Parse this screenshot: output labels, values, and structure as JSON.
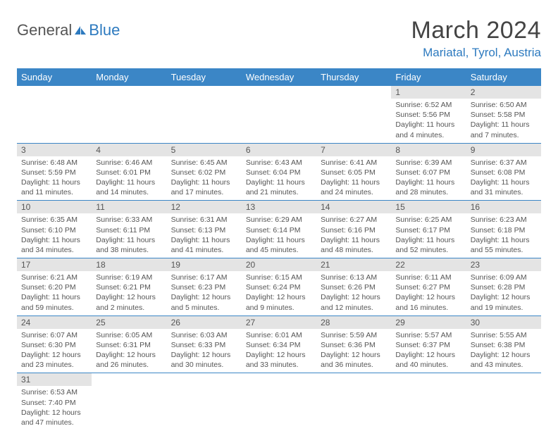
{
  "logo": {
    "part1": "General",
    "part2": "Blue"
  },
  "title": "March 2024",
  "location": "Mariatal, Tyrol, Austria",
  "colors": {
    "header_bg": "#3b86c6",
    "header_text": "#ffffff",
    "daynum_bg": "#e4e4e4",
    "body_text": "#555555",
    "row_border": "#3b86c6",
    "accent": "#2d7abf"
  },
  "weekdays": [
    "Sunday",
    "Monday",
    "Tuesday",
    "Wednesday",
    "Thursday",
    "Friday",
    "Saturday"
  ],
  "weeks": [
    [
      null,
      null,
      null,
      null,
      null,
      {
        "n": "1",
        "sunrise": "Sunrise: 6:52 AM",
        "sunset": "Sunset: 5:56 PM",
        "daylight": "Daylight: 11 hours and 4 minutes."
      },
      {
        "n": "2",
        "sunrise": "Sunrise: 6:50 AM",
        "sunset": "Sunset: 5:58 PM",
        "daylight": "Daylight: 11 hours and 7 minutes."
      }
    ],
    [
      {
        "n": "3",
        "sunrise": "Sunrise: 6:48 AM",
        "sunset": "Sunset: 5:59 PM",
        "daylight": "Daylight: 11 hours and 11 minutes."
      },
      {
        "n": "4",
        "sunrise": "Sunrise: 6:46 AM",
        "sunset": "Sunset: 6:01 PM",
        "daylight": "Daylight: 11 hours and 14 minutes."
      },
      {
        "n": "5",
        "sunrise": "Sunrise: 6:45 AM",
        "sunset": "Sunset: 6:02 PM",
        "daylight": "Daylight: 11 hours and 17 minutes."
      },
      {
        "n": "6",
        "sunrise": "Sunrise: 6:43 AM",
        "sunset": "Sunset: 6:04 PM",
        "daylight": "Daylight: 11 hours and 21 minutes."
      },
      {
        "n": "7",
        "sunrise": "Sunrise: 6:41 AM",
        "sunset": "Sunset: 6:05 PM",
        "daylight": "Daylight: 11 hours and 24 minutes."
      },
      {
        "n": "8",
        "sunrise": "Sunrise: 6:39 AM",
        "sunset": "Sunset: 6:07 PM",
        "daylight": "Daylight: 11 hours and 28 minutes."
      },
      {
        "n": "9",
        "sunrise": "Sunrise: 6:37 AM",
        "sunset": "Sunset: 6:08 PM",
        "daylight": "Daylight: 11 hours and 31 minutes."
      }
    ],
    [
      {
        "n": "10",
        "sunrise": "Sunrise: 6:35 AM",
        "sunset": "Sunset: 6:10 PM",
        "daylight": "Daylight: 11 hours and 34 minutes."
      },
      {
        "n": "11",
        "sunrise": "Sunrise: 6:33 AM",
        "sunset": "Sunset: 6:11 PM",
        "daylight": "Daylight: 11 hours and 38 minutes."
      },
      {
        "n": "12",
        "sunrise": "Sunrise: 6:31 AM",
        "sunset": "Sunset: 6:13 PM",
        "daylight": "Daylight: 11 hours and 41 minutes."
      },
      {
        "n": "13",
        "sunrise": "Sunrise: 6:29 AM",
        "sunset": "Sunset: 6:14 PM",
        "daylight": "Daylight: 11 hours and 45 minutes."
      },
      {
        "n": "14",
        "sunrise": "Sunrise: 6:27 AM",
        "sunset": "Sunset: 6:16 PM",
        "daylight": "Daylight: 11 hours and 48 minutes."
      },
      {
        "n": "15",
        "sunrise": "Sunrise: 6:25 AM",
        "sunset": "Sunset: 6:17 PM",
        "daylight": "Daylight: 11 hours and 52 minutes."
      },
      {
        "n": "16",
        "sunrise": "Sunrise: 6:23 AM",
        "sunset": "Sunset: 6:18 PM",
        "daylight": "Daylight: 11 hours and 55 minutes."
      }
    ],
    [
      {
        "n": "17",
        "sunrise": "Sunrise: 6:21 AM",
        "sunset": "Sunset: 6:20 PM",
        "daylight": "Daylight: 11 hours and 59 minutes."
      },
      {
        "n": "18",
        "sunrise": "Sunrise: 6:19 AM",
        "sunset": "Sunset: 6:21 PM",
        "daylight": "Daylight: 12 hours and 2 minutes."
      },
      {
        "n": "19",
        "sunrise": "Sunrise: 6:17 AM",
        "sunset": "Sunset: 6:23 PM",
        "daylight": "Daylight: 12 hours and 5 minutes."
      },
      {
        "n": "20",
        "sunrise": "Sunrise: 6:15 AM",
        "sunset": "Sunset: 6:24 PM",
        "daylight": "Daylight: 12 hours and 9 minutes."
      },
      {
        "n": "21",
        "sunrise": "Sunrise: 6:13 AM",
        "sunset": "Sunset: 6:26 PM",
        "daylight": "Daylight: 12 hours and 12 minutes."
      },
      {
        "n": "22",
        "sunrise": "Sunrise: 6:11 AM",
        "sunset": "Sunset: 6:27 PM",
        "daylight": "Daylight: 12 hours and 16 minutes."
      },
      {
        "n": "23",
        "sunrise": "Sunrise: 6:09 AM",
        "sunset": "Sunset: 6:28 PM",
        "daylight": "Daylight: 12 hours and 19 minutes."
      }
    ],
    [
      {
        "n": "24",
        "sunrise": "Sunrise: 6:07 AM",
        "sunset": "Sunset: 6:30 PM",
        "daylight": "Daylight: 12 hours and 23 minutes."
      },
      {
        "n": "25",
        "sunrise": "Sunrise: 6:05 AM",
        "sunset": "Sunset: 6:31 PM",
        "daylight": "Daylight: 12 hours and 26 minutes."
      },
      {
        "n": "26",
        "sunrise": "Sunrise: 6:03 AM",
        "sunset": "Sunset: 6:33 PM",
        "daylight": "Daylight: 12 hours and 30 minutes."
      },
      {
        "n": "27",
        "sunrise": "Sunrise: 6:01 AM",
        "sunset": "Sunset: 6:34 PM",
        "daylight": "Daylight: 12 hours and 33 minutes."
      },
      {
        "n": "28",
        "sunrise": "Sunrise: 5:59 AM",
        "sunset": "Sunset: 6:36 PM",
        "daylight": "Daylight: 12 hours and 36 minutes."
      },
      {
        "n": "29",
        "sunrise": "Sunrise: 5:57 AM",
        "sunset": "Sunset: 6:37 PM",
        "daylight": "Daylight: 12 hours and 40 minutes."
      },
      {
        "n": "30",
        "sunrise": "Sunrise: 5:55 AM",
        "sunset": "Sunset: 6:38 PM",
        "daylight": "Daylight: 12 hours and 43 minutes."
      }
    ],
    [
      {
        "n": "31",
        "sunrise": "Sunrise: 6:53 AM",
        "sunset": "Sunset: 7:40 PM",
        "daylight": "Daylight: 12 hours and 47 minutes."
      },
      null,
      null,
      null,
      null,
      null,
      null
    ]
  ]
}
